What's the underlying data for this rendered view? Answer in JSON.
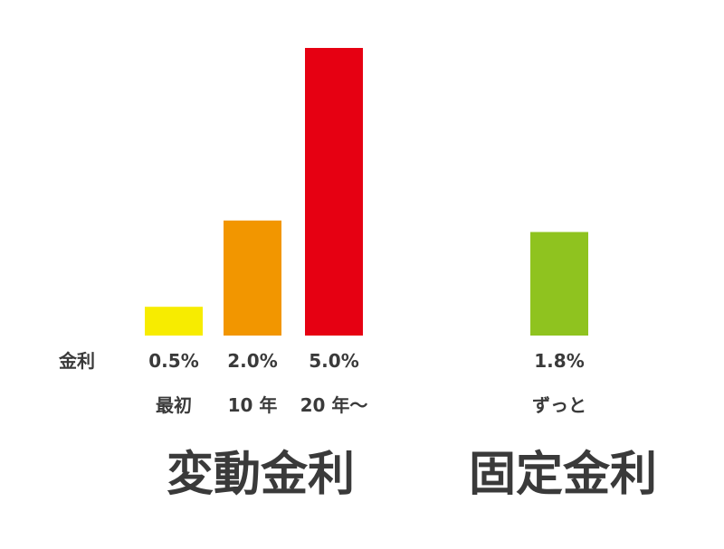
{
  "row_label": "金利",
  "chart_data": {
    "type": "bar",
    "categories": [
      "最初",
      "10 年",
      "20 年～",
      "ずっと"
    ],
    "values": [
      0.5,
      2.0,
      5.0,
      1.8
    ],
    "value_labels": [
      "0.5%",
      "2.0%",
      "5.0%",
      "1.8%"
    ],
    "groups": [
      {
        "label": "変動金利",
        "members": [
          0,
          1,
          2
        ]
      },
      {
        "label": "固定金利",
        "members": [
          3
        ]
      }
    ],
    "colors": [
      "#f7ec00",
      "#f29600",
      "#e60012",
      "#8fc31f"
    ],
    "ylim": [
      0,
      5.0
    ],
    "grid": false,
    "legend": "none"
  }
}
